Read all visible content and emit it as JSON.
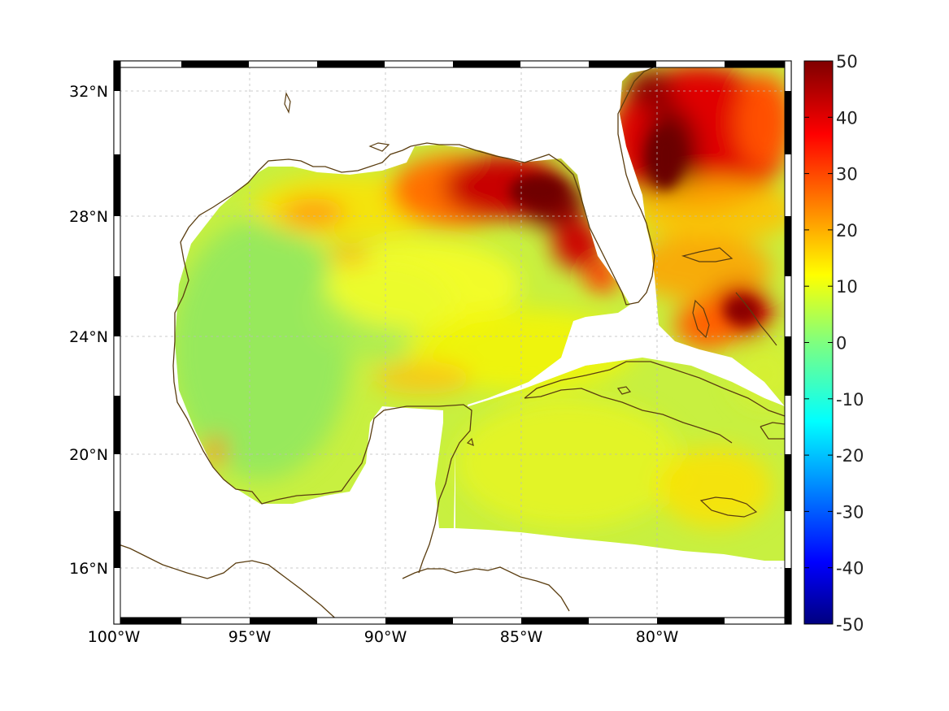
{
  "map": {
    "projection_extent": {
      "lon": [
        -100,
        -75
      ],
      "lat": [
        14,
        33
      ]
    },
    "lon_ticks": [
      {
        "value": -100,
        "label": "100°W"
      },
      {
        "value": -95,
        "label": "95°W"
      },
      {
        "value": -90,
        "label": "90°W"
      },
      {
        "value": -85,
        "label": "85°W"
      },
      {
        "value": -80,
        "label": "80°W"
      }
    ],
    "lat_ticks": [
      {
        "value": 32,
        "label": "32°N"
      },
      {
        "value": 28,
        "label": "28°N"
      },
      {
        "value": 24,
        "label": "24°N"
      },
      {
        "value": 20,
        "label": "20°N"
      },
      {
        "value": 16,
        "label": "16°N"
      }
    ],
    "coastline_color": "#5a3d10",
    "grid": true
  },
  "colorbar": {
    "colormap": "jet",
    "range": [
      -50,
      50
    ],
    "ticks": [
      {
        "value": 50,
        "label": "50"
      },
      {
        "value": 40,
        "label": "40"
      },
      {
        "value": 30,
        "label": "30"
      },
      {
        "value": 20,
        "label": "20"
      },
      {
        "value": 10,
        "label": "10"
      },
      {
        "value": 0,
        "label": "0"
      },
      {
        "value": -10,
        "label": "-10"
      },
      {
        "value": -20,
        "label": "-20"
      },
      {
        "value": -30,
        "label": "-30"
      },
      {
        "value": -40,
        "label": "-40"
      },
      {
        "value": -50,
        "label": "-50"
      }
    ]
  },
  "field_summary": {
    "background_level": 8,
    "hotspots": [
      {
        "region": "Florida Big Bend shelf",
        "value": 50
      },
      {
        "region": "Atlantic off Georgia/South Carolina",
        "value": 50
      },
      {
        "region": "Bahamas",
        "value": 45
      },
      {
        "region": "Texas-Louisiana shelf",
        "value": 22
      },
      {
        "region": "Central Gulf patch",
        "value": 20
      }
    ]
  }
}
